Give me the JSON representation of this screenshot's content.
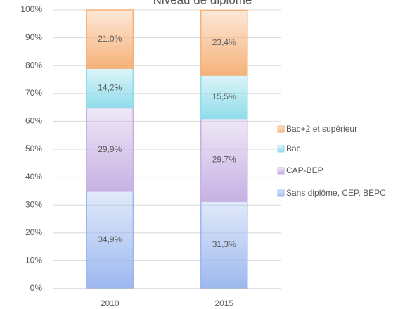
{
  "chart_data": {
    "type": "bar",
    "stacked": true,
    "title": "Niveau de diplôme",
    "categories": [
      "2010",
      "2015"
    ],
    "series": [
      {
        "name": "Sans diplôme, CEP, BEPC",
        "color": "#9db8ef",
        "values": [
          34.9,
          31.3
        ],
        "value_labels": [
          "34,9%",
          "31,3%"
        ]
      },
      {
        "name": "CAP-BEP",
        "color": "#c7b1e3",
        "values": [
          29.9,
          29.7
        ],
        "value_labels": [
          "29,9%",
          "29,7%"
        ]
      },
      {
        "name": "Bac",
        "color": "#8fdcea",
        "values": [
          14.2,
          15.5
        ],
        "value_labels": [
          "14,2%",
          "15,5%"
        ]
      },
      {
        "name": "Bac+2 et supérieur",
        "color": "#f6b27a",
        "values": [
          21.0,
          23.4
        ],
        "value_labels": [
          "21,0%",
          "23,4%"
        ]
      }
    ],
    "ylim": [
      0,
      100
    ],
    "yticks": [
      {
        "value": 0,
        "label": "0%"
      },
      {
        "value": 10,
        "label": "10%"
      },
      {
        "value": 20,
        "label": "20%"
      },
      {
        "value": 30,
        "label": "30%"
      },
      {
        "value": 40,
        "label": "40%"
      },
      {
        "value": 50,
        "label": "50%"
      },
      {
        "value": 60,
        "label": "60%"
      },
      {
        "value": 70,
        "label": "70%"
      },
      {
        "value": 80,
        "label": "80%"
      },
      {
        "value": 90,
        "label": "90%"
      },
      {
        "value": 100,
        "label": "100%"
      }
    ],
    "grid": true,
    "legend": "right"
  }
}
